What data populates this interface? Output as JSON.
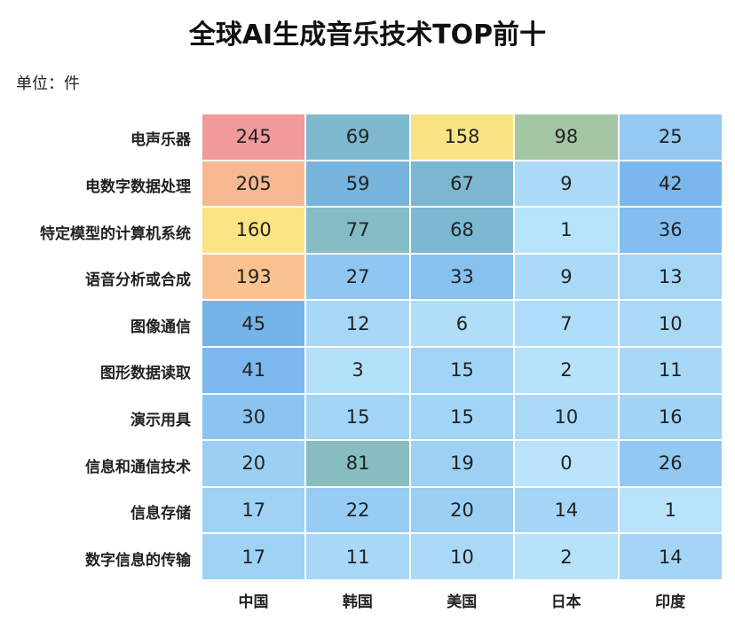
{
  "chart_data": {
    "type": "heatmap",
    "title": "全球AI生成音乐技术TOP前十",
    "unit_label": "单位：件",
    "rows": [
      "电声乐器",
      "电数字数据处理",
      "特定模型的计算机系统",
      "语音分析或合成",
      "图像通信",
      "图形数据读取",
      "演示用具",
      "信息和通信技术",
      "信息存储",
      "数字信息的传输"
    ],
    "columns": [
      "中国",
      "韩国",
      "美国",
      "日本",
      "印度"
    ],
    "values": [
      [
        245,
        69,
        158,
        98,
        25
      ],
      [
        205,
        59,
        67,
        9,
        42
      ],
      [
        160,
        77,
        68,
        1,
        36
      ],
      [
        193,
        27,
        33,
        9,
        13
      ],
      [
        45,
        12,
        6,
        7,
        10
      ],
      [
        41,
        3,
        15,
        2,
        11
      ],
      [
        30,
        15,
        15,
        10,
        16
      ],
      [
        20,
        81,
        19,
        0,
        26
      ],
      [
        17,
        22,
        20,
        14,
        1
      ],
      [
        17,
        11,
        10,
        2,
        14
      ]
    ],
    "color_scale": [
      {
        "stop": 0,
        "color": "#b9e4fb"
      },
      {
        "stop": 0.2,
        "color": "#6fb0ea"
      },
      {
        "stop": 0.35,
        "color": "#8abfb9"
      },
      {
        "stop": 0.45,
        "color": "#bfcd8d"
      },
      {
        "stop": 0.65,
        "color": "#fae584"
      },
      {
        "stop": 0.8,
        "color": "#f8c090"
      },
      {
        "stop": 1,
        "color": "#f09a9a"
      }
    ],
    "value_range": [
      0,
      245
    ]
  }
}
